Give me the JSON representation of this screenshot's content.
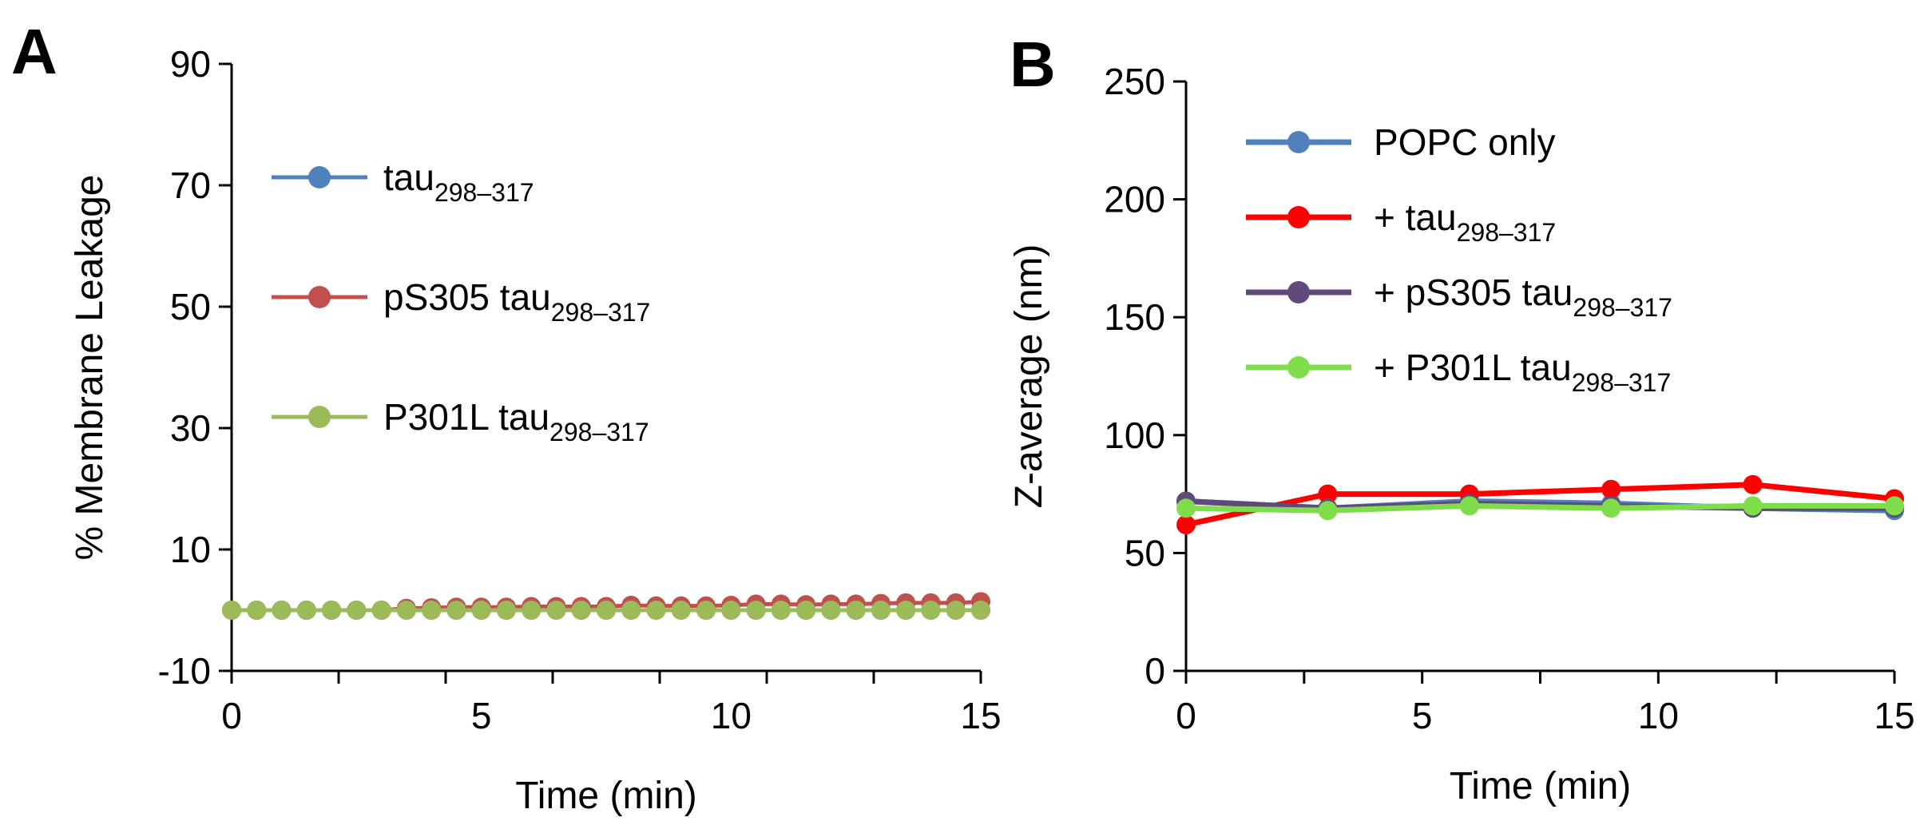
{
  "chart_data": [
    {
      "panel": "A",
      "type": "line",
      "xlabel": "Time (min)",
      "ylabel": "% Membrane Leakage",
      "xlim": [
        0,
        15
      ],
      "ylim": [
        -10,
        90
      ],
      "xticks": [
        "0",
        "5",
        "10",
        "15"
      ],
      "yticks": [
        "-10",
        "10",
        "30",
        "50",
        "70",
        "90"
      ],
      "legend_position": "upper-left",
      "x": [
        0,
        0.5,
        1,
        1.5,
        2,
        2.5,
        3,
        3.5,
        4,
        4.5,
        5,
        5.5,
        6,
        6.5,
        7,
        7.5,
        8,
        8.5,
        9,
        9.5,
        10,
        10.5,
        11,
        11.5,
        12,
        12.5,
        13,
        13.5,
        14,
        14.5,
        15
      ],
      "series": [
        {
          "name": "tau",
          "sub": "298–317",
          "color": "#4f81bd",
          "values": [
            0,
            0,
            0,
            0,
            0,
            0,
            0,
            0,
            0,
            0,
            0,
            0,
            0,
            0,
            0,
            0,
            0,
            0,
            0,
            0,
            0,
            0,
            0,
            0,
            0,
            0,
            0,
            0,
            0,
            0,
            0
          ]
        },
        {
          "name": "pS305 tau",
          "sub": "298–317",
          "color": "#c0504d",
          "values": [
            0,
            0,
            0,
            0,
            0,
            0,
            0,
            0.3,
            0.4,
            0.5,
            0.5,
            0.5,
            0.6,
            0.6,
            0.6,
            0.6,
            0.8,
            0.7,
            0.7,
            0.7,
            0.8,
            1.0,
            1.0,
            0.9,
            1.0,
            1.0,
            1.1,
            1.2,
            1.2,
            1.2,
            1.4
          ]
        },
        {
          "name": "P301L tau",
          "sub": "298–317",
          "color": "#9bbb59",
          "values": [
            0,
            0,
            0,
            0,
            0,
            0,
            0,
            0,
            0,
            0,
            0,
            0,
            0,
            0,
            0,
            0,
            0,
            0,
            0,
            0,
            0,
            0,
            0,
            0,
            0,
            0,
            0,
            0,
            0,
            0,
            0
          ]
        }
      ]
    },
    {
      "panel": "B",
      "type": "line",
      "xlabel": "Time (min)",
      "ylabel": "Z-average (nm)",
      "xlim": [
        0,
        15
      ],
      "ylim": [
        0,
        250
      ],
      "xticks": [
        "0",
        "5",
        "10",
        "15"
      ],
      "yticks": [
        "0",
        "50",
        "100",
        "150",
        "200",
        "250"
      ],
      "legend_position": "upper-left",
      "x": [
        0,
        3,
        6,
        9,
        12,
        15
      ],
      "series": [
        {
          "name": "POPC only",
          "sub": "",
          "color": "#4f81bd",
          "values": [
            72,
            69,
            72,
            71,
            69,
            68
          ]
        },
        {
          "name": "+ tau",
          "sub": "298–317",
          "color": "#ff0000",
          "values": [
            62,
            75,
            75,
            77,
            79,
            73
          ]
        },
        {
          "name": "+ pS305 tau",
          "sub": "298–317",
          "color": "#604a7b",
          "values": [
            72,
            69,
            71,
            70,
            69,
            69
          ]
        },
        {
          "name": "+ P301L tau",
          "sub": "298–317",
          "color": "#7fdd4c",
          "values": [
            69,
            68,
            70,
            69,
            70,
            70
          ]
        }
      ]
    }
  ]
}
